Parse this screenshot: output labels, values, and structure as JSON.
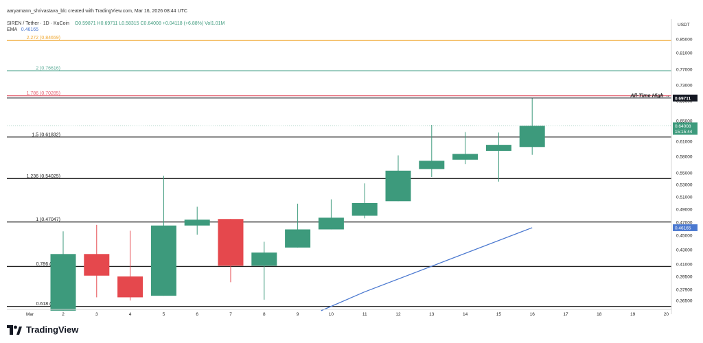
{
  "header": {
    "credit": "aaryamann_shrivastava_blc created with TradingView.com, Mar 16, 2026 08:44 UTC",
    "symbol": "SIREN / Tether · 1D · KuCoin",
    "ohlc": "O0.59871  H0.69711  L0.58315  C0.64008  +0.04118 (+6.88%)  Vol1.01M",
    "ema_label": "EMA",
    "ema_value": "0.46165"
  },
  "brand": {
    "name": "TradingView"
  },
  "colors": {
    "up": "#3d9a7c",
    "down": "#e5484d",
    "ema": "#4a78d0",
    "fib_2272": "#f0a830",
    "fib_2": "#5fae9a",
    "fib_1786": "#e25b6b",
    "fib_default": "#222222",
    "price_tag": "#3d9a7c",
    "ema_tag": "#4a78d0",
    "ath_tag": "#131722"
  },
  "chart_data": {
    "type": "candlestick",
    "currency": "USDT",
    "x_month_label": "Mar",
    "x_ticks": [
      "2",
      "3",
      "4",
      "5",
      "6",
      "7",
      "8",
      "9",
      "10",
      "11",
      "12",
      "13",
      "14",
      "15",
      "16",
      "17",
      "18",
      "19",
      "20"
    ],
    "y_ticks": [
      "0.85000",
      "0.81000",
      "0.77000",
      "0.73000",
      "0.69000",
      "0.65000",
      "0.61000",
      "0.58000",
      "0.55000",
      "0.53000",
      "0.51000",
      "0.49000",
      "0.47000",
      "0.45000",
      "0.43000",
      "0.41000",
      "0.39500",
      "0.37900",
      "0.36500"
    ],
    "candles": [
      {
        "day": 2,
        "open": 0.352,
        "high": 0.456,
        "low": 0.352,
        "close": 0.424
      },
      {
        "day": 3,
        "open": 0.424,
        "high": 0.466,
        "low": 0.369,
        "close": 0.396
      },
      {
        "day": 4,
        "open": 0.395,
        "high": 0.457,
        "low": 0.365,
        "close": 0.369
      },
      {
        "day": 5,
        "open": 0.371,
        "high": 0.545,
        "low": 0.371,
        "close": 0.465
      },
      {
        "day": 6,
        "open": 0.465,
        "high": 0.494,
        "low": 0.451,
        "close": 0.474
      },
      {
        "day": 7,
        "open": 0.475,
        "high": 0.475,
        "low": 0.388,
        "close": 0.408
      },
      {
        "day": 8,
        "open": 0.408,
        "high": 0.441,
        "low": 0.366,
        "close": 0.426
      },
      {
        "day": 9,
        "open": 0.433,
        "high": 0.499,
        "low": 0.433,
        "close": 0.459
      },
      {
        "day": 10,
        "open": 0.459,
        "high": 0.506,
        "low": 0.459,
        "close": 0.477
      },
      {
        "day": 11,
        "open": 0.48,
        "high": 0.532,
        "low": 0.476,
        "close": 0.5
      },
      {
        "day": 12,
        "open": 0.503,
        "high": 0.582,
        "low": 0.503,
        "close": 0.554
      },
      {
        "day": 13,
        "open": 0.557,
        "high": 0.642,
        "low": 0.543,
        "close": 0.572
      },
      {
        "day": 14,
        "open": 0.574,
        "high": 0.628,
        "low": 0.566,
        "close": 0.585
      },
      {
        "day": 15,
        "open": 0.591,
        "high": 0.627,
        "low": 0.535,
        "close": 0.603
      },
      {
        "day": 16,
        "open": 0.59871,
        "high": 0.69711,
        "low": 0.58315,
        "close": 0.64008
      }
    ],
    "ema": [
      {
        "day": 9.7,
        "value": 0.352
      },
      {
        "day": 11,
        "value": 0.376
      },
      {
        "day": 16,
        "value": 0.46165
      }
    ],
    "fib_levels": [
      {
        "label": "2.272 (0.84659)",
        "value": 0.84659,
        "color_key": "fib_2272"
      },
      {
        "label": "2 (0.76616)",
        "value": 0.76616,
        "color_key": "fib_2"
      },
      {
        "label": "1.786 (0.70285)",
        "value": 0.70285,
        "color_key": "fib_1786"
      },
      {
        "label": "1.5 (0.61832)",
        "value": 0.61832,
        "color_key": "fib_default"
      },
      {
        "label": "1.236 (0.54025)",
        "value": 0.54025,
        "color_key": "fib_default"
      },
      {
        "label": "1 (0.47047)",
        "value": 0.47047,
        "color_key": "fib_default"
      },
      {
        "label": "0.786 (0.40",
        "value": 0.40712,
        "color_key": "fib_default"
      },
      {
        "label": "0.618 (0.35",
        "value": 0.35743,
        "color_key": "fib_default"
      }
    ],
    "ath": {
      "label": "All-Time High",
      "value": 0.69711,
      "price_text": "0.69711"
    },
    "last_price": {
      "value": 0.64008,
      "price_text": "0.64008",
      "countdown": "15:15:44"
    },
    "ema_last": {
      "value": 0.46165,
      "price_text": "0.46165"
    }
  }
}
